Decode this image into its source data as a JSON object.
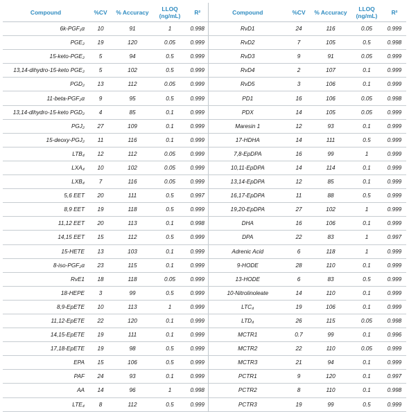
{
  "headers": {
    "compound": "Compound",
    "cv": "%CV",
    "accuracy": "% Accuracy",
    "lloq_line1": "LLOQ",
    "lloq_line2": "(ng/mL)",
    "r2": "R²"
  },
  "left": [
    {
      "compound": "6k-PGF₁α",
      "cv": "10",
      "acc": "91",
      "lloq": "1",
      "r2": "0.998"
    },
    {
      "compound": "PGE₂",
      "cv": "19",
      "acc": "120",
      "lloq": "0.05",
      "r2": "0.999"
    },
    {
      "compound": "15-keto-PGE₂",
      "cv": "5",
      "acc": "94",
      "lloq": "0.5",
      "r2": "0.999"
    },
    {
      "compound": "13,14-dihydro-15-keto  PGE₂",
      "cv": "5",
      "acc": "102",
      "lloq": "0.5",
      "r2": "0.999"
    },
    {
      "compound": "PGD₂",
      "cv": "13",
      "acc": "112",
      "lloq": "0.05",
      "r2": "0.999"
    },
    {
      "compound": "11-beta-PGF₂α",
      "cv": "9",
      "acc": "95",
      "lloq": "0.5",
      "r2": "0.999"
    },
    {
      "compound": "13,14-dihydro-15-keto PGD₂",
      "cv": "4",
      "acc": "85",
      "lloq": "0.1",
      "r2": "0.999"
    },
    {
      "compound": "PGJ₂",
      "cv": "27",
      "acc": "109",
      "lloq": "0.1",
      "r2": "0.999"
    },
    {
      "compound": "15-deoxy-PGJ₂",
      "cv": "11",
      "acc": "116",
      "lloq": "0.1",
      "r2": "0.999"
    },
    {
      "compound": "LTB₄",
      "cv": "12",
      "acc": "112",
      "lloq": "0.05",
      "r2": "0.999"
    },
    {
      "compound": "LXA₄",
      "cv": "10",
      "acc": "102",
      "lloq": "0.05",
      "r2": "0.999"
    },
    {
      "compound": "LXB₄",
      "cv": "7",
      "acc": "116",
      "lloq": "0.05",
      "r2": "0.999"
    },
    {
      "compound": "5,6 EET",
      "cv": "20",
      "acc": "111",
      "lloq": "0.5",
      "r2": "0.997"
    },
    {
      "compound": "8,9 EET",
      "cv": "19",
      "acc": "118",
      "lloq": "0.5",
      "r2": "0.999"
    },
    {
      "compound": "11,12 EET",
      "cv": "20",
      "acc": "113",
      "lloq": "0.1",
      "r2": "0.998"
    },
    {
      "compound": "14,15 EET",
      "cv": "15",
      "acc": "112",
      "lloq": "0.5",
      "r2": "0.999"
    },
    {
      "compound": "15-HETE",
      "cv": "13",
      "acc": "103",
      "lloq": "0.1",
      "r2": "0.999"
    },
    {
      "compound": "8-iso-PGF₂α",
      "cv": "23",
      "acc": "115",
      "lloq": "0.1",
      "r2": "0.999"
    },
    {
      "compound": "RvE1",
      "cv": "18",
      "acc": "118",
      "lloq": "0.05",
      "r2": "0.999"
    },
    {
      "compound": "18-HEPE",
      "cv": "3",
      "acc": "99",
      "lloq": "0.5",
      "r2": "0.999"
    },
    {
      "compound": "8,9-EpETE",
      "cv": "10",
      "acc": "113",
      "lloq": "1",
      "r2": "0.999"
    },
    {
      "compound": "11,12-EpETE",
      "cv": "22",
      "acc": "120",
      "lloq": "0.1",
      "r2": "0.999"
    },
    {
      "compound": "14,15-EpETE",
      "cv": "19",
      "acc": "111",
      "lloq": "0.1",
      "r2": "0.999"
    },
    {
      "compound": "17,18-EpETE",
      "cv": "19",
      "acc": "98",
      "lloq": "0.5",
      "r2": "0.999"
    },
    {
      "compound": "EPA",
      "cv": "15",
      "acc": "106",
      "lloq": "0.5",
      "r2": "0.999"
    },
    {
      "compound": "PAF",
      "cv": "24",
      "acc": "93",
      "lloq": "0.1",
      "r2": "0.999"
    },
    {
      "compound": "AA",
      "cv": "14",
      "acc": "96",
      "lloq": "1",
      "r2": "0.998"
    },
    {
      "compound": "LTE₄",
      "cv": "8",
      "acc": "112",
      "lloq": "0.5",
      "r2": "0.999"
    }
  ],
  "right": [
    {
      "compound": "RvD1",
      "cv": "24",
      "acc": "116",
      "lloq": "0.05",
      "r2": "0.999"
    },
    {
      "compound": "RvD2",
      "cv": "7",
      "acc": "105",
      "lloq": "0.5",
      "r2": "0.998"
    },
    {
      "compound": "RvD3",
      "cv": "9",
      "acc": "91",
      "lloq": "0.05",
      "r2": "0.999"
    },
    {
      "compound": "RvD4",
      "cv": "2",
      "acc": "107",
      "lloq": "0.1",
      "r2": "0.999"
    },
    {
      "compound": "RvD5",
      "cv": "3",
      "acc": "106",
      "lloq": "0.1",
      "r2": "0.999"
    },
    {
      "compound": "PD1",
      "cv": "16",
      "acc": "106",
      "lloq": "0.05",
      "r2": "0.998"
    },
    {
      "compound": "PDX",
      "cv": "14",
      "acc": "105",
      "lloq": "0.05",
      "r2": "0.999"
    },
    {
      "compound": "Maresin 1",
      "cv": "12",
      "acc": "93",
      "lloq": "0.1",
      "r2": "0.999"
    },
    {
      "compound": "17-HDHA",
      "cv": "14",
      "acc": "111",
      "lloq": "0.5",
      "r2": "0.999"
    },
    {
      "compound": "7,8-EpDPA",
      "cv": "16",
      "acc": "99",
      "lloq": "1",
      "r2": "0.999"
    },
    {
      "compound": "10,11-EpDPA",
      "cv": "14",
      "acc": "114",
      "lloq": "0.1",
      "r2": "0.999"
    },
    {
      "compound": "13,14-EpDPA",
      "cv": "12",
      "acc": "85",
      "lloq": "0.1",
      "r2": "0.999"
    },
    {
      "compound": "16,17-EpDPA",
      "cv": "11",
      "acc": "88",
      "lloq": "0.5",
      "r2": "0.999"
    },
    {
      "compound": "19,20-EpDPA",
      "cv": "27",
      "acc": "102",
      "lloq": "1",
      "r2": "0.999"
    },
    {
      "compound": "DHA",
      "cv": "16",
      "acc": "106",
      "lloq": "0.1",
      "r2": "0.999"
    },
    {
      "compound": "DPA",
      "cv": "22",
      "acc": "83",
      "lloq": "1",
      "r2": "0.997"
    },
    {
      "compound": "Adrenic Acid",
      "cv": "6",
      "acc": "118",
      "lloq": "1",
      "r2": "0.999"
    },
    {
      "compound": "9-HODE",
      "cv": "28",
      "acc": "110",
      "lloq": "0.1",
      "r2": "0.999"
    },
    {
      "compound": "13-HODE",
      "cv": "6",
      "acc": "83",
      "lloq": "0.5",
      "r2": "0.999"
    },
    {
      "compound": "10-Nitrolinoleate",
      "cv": "14",
      "acc": "110",
      "lloq": "0.1",
      "r2": "0.999"
    },
    {
      "compound": "LTC₄",
      "cv": "19",
      "acc": "106",
      "lloq": "0.1",
      "r2": "0.999"
    },
    {
      "compound": "LTD₄",
      "cv": "26",
      "acc": "115",
      "lloq": "0.05",
      "r2": "0.998"
    },
    {
      "compound": "MCTR1",
      "cv": "0.7",
      "acc": "99",
      "lloq": "0.1",
      "r2": "0.996"
    },
    {
      "compound": "MCTR2",
      "cv": "22",
      "acc": "110",
      "lloq": "0.05",
      "r2": "0.999"
    },
    {
      "compound": "MCTR3",
      "cv": "21",
      "acc": "94",
      "lloq": "0.1",
      "r2": "0.999"
    },
    {
      "compound": "PCTR1",
      "cv": "9",
      "acc": "120",
      "lloq": "0.1",
      "r2": "0.997"
    },
    {
      "compound": "PCTR2",
      "cv": "8",
      "acc": "110",
      "lloq": "0.1",
      "r2": "0.998"
    },
    {
      "compound": "PCTR3",
      "cv": "19",
      "acc": "99",
      "lloq": "0.5",
      "r2": "0.999"
    }
  ]
}
